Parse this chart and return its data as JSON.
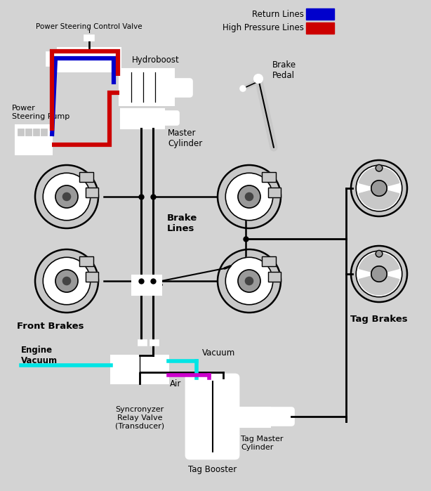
{
  "bg_color": "#d3d3d3",
  "legend": {
    "return_label": "Return Lines",
    "high_pressure_label": "High Pressure Lines",
    "return_color": "#0000cc",
    "high_pressure_color": "#cc0000"
  },
  "labels": {
    "power_steering_control_valve": "Power Steering Control Valve",
    "hydroboost": "Hydroboost",
    "power_steering_pump": "Power\nSteering Pump",
    "brake_pedal": "Brake\nPedal",
    "master_cylinder": "Master\nCylinder",
    "brake_lines": "Brake\nLines",
    "front_brakes": "Front Brakes",
    "tag_brakes": "Tag Brakes",
    "engine_vacuum": "Engine\nVacuum",
    "syncronyzer": "Syncronyzer\nRelay Valve\n(Transducer)",
    "vacuum": "Vacuum",
    "air": "Air",
    "tag_booster": "Tag Booster",
    "tag_master_cylinder": "Tag Master\nCylinder"
  },
  "colors": {
    "black": "#000000",
    "white": "#ffffff",
    "red": "#cc0000",
    "blue": "#0000cc",
    "cyan": "#00e5e5",
    "magenta": "#cc00cc",
    "gray": "#888888",
    "light_gray": "#c8c8c8",
    "dark_gray": "#444444",
    "mid_gray": "#999999"
  }
}
